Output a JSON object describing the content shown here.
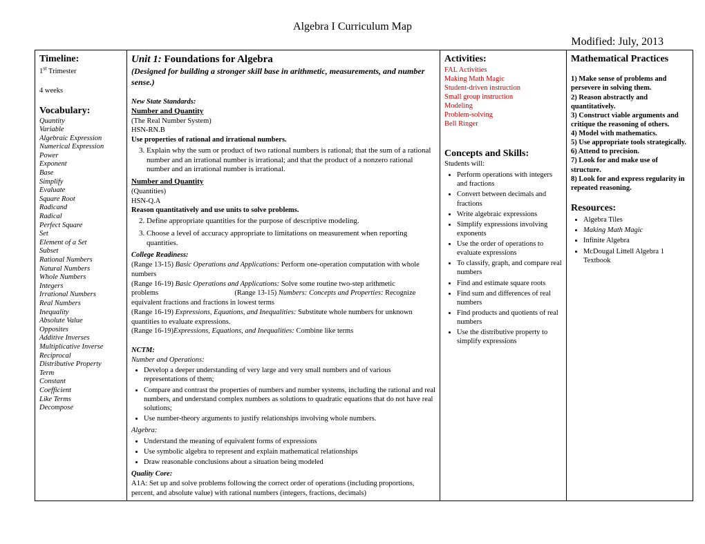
{
  "title": "Algebra I Curriculum Map",
  "modified": "Modified: July, 2013",
  "col1": {
    "timeline_head": "Timeline",
    "trimester": "1",
    "trimester_suffix": "st",
    "trimester_label": " Trimester",
    "weeks": "4 weeks",
    "vocab_head": "Vocabulary:",
    "vocab": [
      "Quantity",
      "Variable",
      "Algebraic Expression",
      "Numerical Expression",
      "Power",
      "Exponent",
      "Base",
      "Simplify",
      "Evaluate",
      "Square Root",
      "Radicand",
      "Radical",
      "Perfect Square",
      "Set",
      "Element of a Set",
      "Subset",
      "Rational Numbers",
      "Natural Numbers",
      "Whole Numbers",
      "Integers",
      "Irrational Numbers",
      "Real Numbers",
      "Inequality",
      "Absolute Value",
      "Opposites",
      "Additive Inverses",
      "Multiplicative Inverse",
      "Reciprocal",
      "Distributive Property",
      "Term",
      "Constant",
      "Coefficient",
      "Like Terms",
      "Decompose"
    ]
  },
  "col2": {
    "unit_prefix": "Unit 1:",
    "unit_title": " Foundations for Algebra",
    "subtitle": "(Designed for building a stronger skill base in arithmetic, measurements, and number sense.)",
    "nss_label": "New State Standards:",
    "nq1": "Number and Quantity",
    "rns": "(The Real Number System)",
    "hsn1": "HSN-RN.B",
    "use_props": "Use properties of rational and irrational numbers.",
    "item3": "Explain why the sum or product of two rational numbers is rational; that the sum of a rational number and an irrational number is irrational; and that the product of a nonzero rational number and an irrational number is irrational.",
    "nq2": "Number and Quantity",
    "quant": "(Quantities)",
    "hsn2": "HSN-Q.A",
    "reason": "Reason quantitatively and use units to solve problems.",
    "item2": "Define appropriate quantities for the purpose of descriptive modeling.",
    "item3b": "Choose a level of accuracy appropriate to limitations on measurement when reporting quantities.",
    "cr_head": "College Readiness:",
    "cr1a": "(Range 13-15) ",
    "cr1b": "Basic Operations and Applications:",
    "cr1c": "  Perform one-operation computation with whole numbers",
    "cr2a": "(Range 16-19) ",
    "cr2b": "Basic Operations and Applications:",
    "cr2c": "  Solve some routine two-step arithmetic problems",
    "cr2d": "(Range 13-15) ",
    "cr2e": "Numbers: Concepts and Properties:",
    "cr2f": " Recognize equivalent fractions and fractions in lowest terms",
    "cr3a": "(Range 16-19) ",
    "cr3b": "Expressions, Equations, and Inequalities:",
    "cr3c": " Substitute whole numbers for unknown quantities to evaluate expressions.",
    "cr4a": "(Range 16-19)",
    "cr4b": "Expressions, Equations, and Inequalities:",
    "cr4c": " Combine like terms",
    "nctm_head": "NCTM:",
    "nctm_sub": "Number and Operations:",
    "nctm1": "Develop a deeper understanding of very large and very small numbers and of various representations of them;",
    "nctm2": "Compare and contrast the properties of numbers and number systems, including the rational and real numbers, and understand complex numbers as solutions to quadratic equations that do not have real solutions;",
    "nctm3": "Use number-theory arguments to justify relationships involving whole numbers.",
    "alg_sub": "Algebra:",
    "alg1": "Understand the meaning of equivalent forms of expressions",
    "alg2": "Use symbolic algebra to represent and explain mathematical relationships",
    "alg3": "Draw reasonable conclusions about a situation being modeled",
    "qc_head": "Quality Core:",
    "qc_text": "A1A:  Set up and solve problems following the correct order of operations (including proportions, percent, and absolute value) with rational numbers (integers, fractions, decimals)"
  },
  "col3": {
    "act_head": "Activities",
    "acts": [
      "FAL Activities",
      "Making Math Magic",
      "Student-driven instruction",
      "Small group instruction",
      "Modeling",
      "Problem-solving",
      "Bell Ringer"
    ],
    "cs_head": "Concepts and Skills:",
    "cs_sub": "Students will:",
    "skills": [
      "Perform operations with integers and fractions",
      "Convert between decimals and fractions",
      "Write algebraic expressions",
      "Simplify expressions involving exponents",
      "Use the order of operations to evaluate expressions",
      "To classify, graph, and compare real numbers",
      "Find and estimate square roots",
      "Find sum and differences of real numbers",
      "Find products and quotients of real numbers",
      "Use the distributive property to simplify expressions"
    ]
  },
  "col4": {
    "mp_head": "Mathematical Practices",
    "mps": [
      "1)  Make sense of problems and persevere in solving them.",
      "2) Reason abstractly and quantitatively.",
      "3) Construct viable arguments and critique the reasoning of others.",
      "4) Model with mathematics.",
      "5) Use appropriate tools strategically.",
      "6) Attend to precision.",
      "7) Look for and make use of structure.",
      "8) Look for and express regularity in repeated reasoning."
    ],
    "res_head": "Resources",
    "res1": "Algebra Tiles",
    "res2": "Making Math Magic",
    "res3": "Infinite Algebra",
    "res4": "McDougal Littell Algebra 1 Textbook"
  }
}
